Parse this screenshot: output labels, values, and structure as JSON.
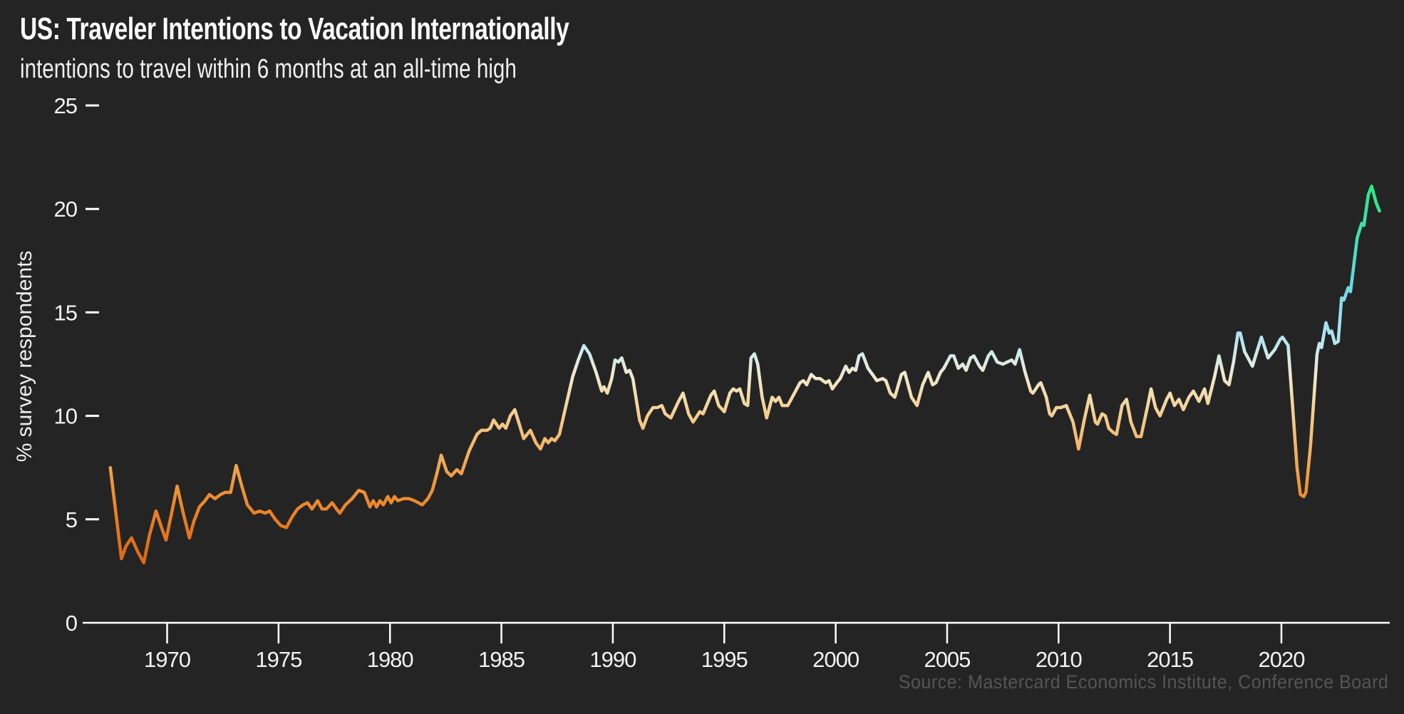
{
  "page": {
    "background": "#242424"
  },
  "header": {
    "title": "US: Traveler Intentions to Vacation Internationally",
    "subtitle": "intentions to travel within 6 months at an all-time high"
  },
  "footer": {
    "source": "Source: Mastercard Economics Institute, Conference Board"
  },
  "chart_data": {
    "type": "line",
    "title": "US: Traveler Intentions to Vacation Internationally",
    "subtitle": "intentions to travel within 6 months at an all-time high",
    "xlabel": "",
    "ylabel": "% survey respondents",
    "x_ticks": [
      1970,
      1975,
      1980,
      1985,
      1990,
      1995,
      2000,
      2005,
      2010,
      2015,
      2020
    ],
    "y_ticks": [
      0,
      5,
      10,
      15,
      20,
      25
    ],
    "xlim": [
      1966.9,
      2025.3
    ],
    "ylim": [
      0,
      25
    ],
    "grid": false,
    "legend_position": "none",
    "axis_color": "#ffffff",
    "line_width": 4.5,
    "color_encoding": "line color encodes y-value: orange (low) to cream (~11) to light blue (~14) to green (~21)",
    "gradient_stops": [
      {
        "value": 0,
        "color": "#c85310"
      },
      {
        "value": 2.8,
        "color": "#dc6414"
      },
      {
        "value": 5,
        "color": "#e97d22"
      },
      {
        "value": 6.5,
        "color": "#ee9438"
      },
      {
        "value": 8,
        "color": "#f1ac5c"
      },
      {
        "value": 9.5,
        "color": "#f3c581"
      },
      {
        "value": 11,
        "color": "#f3dcab"
      },
      {
        "value": 12,
        "color": "#f0e8d2"
      },
      {
        "value": 13,
        "color": "#cfeaea"
      },
      {
        "value": 13.8,
        "color": "#b2e3f2"
      },
      {
        "value": 15,
        "color": "#93dff2"
      },
      {
        "value": 16.5,
        "color": "#66d8e0"
      },
      {
        "value": 18,
        "color": "#4cdcc2"
      },
      {
        "value": 19.5,
        "color": "#38e3a4"
      },
      {
        "value": 21,
        "color": "#2bea83"
      },
      {
        "value": 23,
        "color": "#24ef6e"
      },
      {
        "value": 25,
        "color": "#1df25a"
      }
    ],
    "series": [
      {
        "name": "US traveler intentions to vacation internationally (% of survey respondents)",
        "points": [
          [
            1967.45,
            7.5
          ],
          [
            1967.7,
            5.3
          ],
          [
            1967.95,
            3.1
          ],
          [
            1968.15,
            3.7
          ],
          [
            1968.4,
            4.1
          ],
          [
            1968.7,
            3.4
          ],
          [
            1968.95,
            2.9
          ],
          [
            1969.2,
            4.2
          ],
          [
            1969.5,
            5.4
          ],
          [
            1969.75,
            4.6
          ],
          [
            1969.95,
            4.0
          ],
          [
            1970.2,
            5.3
          ],
          [
            1970.45,
            6.6
          ],
          [
            1970.7,
            5.4
          ],
          [
            1971.0,
            4.1
          ],
          [
            1971.2,
            4.9
          ],
          [
            1971.45,
            5.6
          ],
          [
            1971.7,
            5.9
          ],
          [
            1971.9,
            6.2
          ],
          [
            1972.15,
            6.0
          ],
          [
            1972.4,
            6.2
          ],
          [
            1972.6,
            6.3
          ],
          [
            1972.85,
            6.3
          ],
          [
            1973.1,
            7.6
          ],
          [
            1973.35,
            6.6
          ],
          [
            1973.6,
            5.7
          ],
          [
            1973.9,
            5.3
          ],
          [
            1974.15,
            5.4
          ],
          [
            1974.4,
            5.3
          ],
          [
            1974.6,
            5.4
          ],
          [
            1974.85,
            5.0
          ],
          [
            1975.1,
            4.7
          ],
          [
            1975.35,
            4.6
          ],
          [
            1975.6,
            5.1
          ],
          [
            1975.85,
            5.5
          ],
          [
            1976.1,
            5.7
          ],
          [
            1976.3,
            5.8
          ],
          [
            1976.5,
            5.5
          ],
          [
            1976.75,
            5.9
          ],
          [
            1976.95,
            5.5
          ],
          [
            1977.15,
            5.5
          ],
          [
            1977.4,
            5.8
          ],
          [
            1977.6,
            5.5
          ],
          [
            1977.75,
            5.3
          ],
          [
            1978.0,
            5.7
          ],
          [
            1978.3,
            6.0
          ],
          [
            1978.6,
            6.4
          ],
          [
            1978.85,
            6.3
          ],
          [
            1979.1,
            5.6
          ],
          [
            1979.25,
            5.9
          ],
          [
            1979.4,
            5.6
          ],
          [
            1979.55,
            5.9
          ],
          [
            1979.7,
            5.7
          ],
          [
            1979.9,
            6.1
          ],
          [
            1980.05,
            5.8
          ],
          [
            1980.2,
            6.1
          ],
          [
            1980.35,
            5.9
          ],
          [
            1980.6,
            6.0
          ],
          [
            1980.85,
            6.0
          ],
          [
            1981.1,
            5.9
          ],
          [
            1981.45,
            5.7
          ],
          [
            1981.7,
            6.0
          ],
          [
            1981.9,
            6.4
          ],
          [
            1982.1,
            7.2
          ],
          [
            1982.3,
            8.1
          ],
          [
            1982.55,
            7.3
          ],
          [
            1982.75,
            7.1
          ],
          [
            1983.0,
            7.4
          ],
          [
            1983.2,
            7.2
          ],
          [
            1983.55,
            8.3
          ],
          [
            1983.9,
            9.1
          ],
          [
            1984.1,
            9.3
          ],
          [
            1984.35,
            9.3
          ],
          [
            1984.5,
            9.4
          ],
          [
            1984.65,
            9.8
          ],
          [
            1984.9,
            9.4
          ],
          [
            1985.05,
            9.6
          ],
          [
            1985.2,
            9.4
          ],
          [
            1985.4,
            10.0
          ],
          [
            1985.6,
            10.3
          ],
          [
            1985.8,
            9.6
          ],
          [
            1986.0,
            8.9
          ],
          [
            1986.3,
            9.3
          ],
          [
            1986.55,
            8.7
          ],
          [
            1986.75,
            8.4
          ],
          [
            1986.95,
            8.9
          ],
          [
            1987.1,
            8.7
          ],
          [
            1987.25,
            8.9
          ],
          [
            1987.4,
            8.8
          ],
          [
            1987.6,
            9.1
          ],
          [
            1987.9,
            10.5
          ],
          [
            1988.2,
            11.9
          ],
          [
            1988.45,
            12.7
          ],
          [
            1988.7,
            13.4
          ],
          [
            1988.95,
            13.0
          ],
          [
            1989.25,
            12.1
          ],
          [
            1989.5,
            11.2
          ],
          [
            1989.6,
            11.4
          ],
          [
            1989.75,
            11.1
          ],
          [
            1989.95,
            11.8
          ],
          [
            1990.1,
            12.7
          ],
          [
            1990.25,
            12.6
          ],
          [
            1990.4,
            12.8
          ],
          [
            1990.6,
            12.1
          ],
          [
            1990.75,
            12.2
          ],
          [
            1990.9,
            11.8
          ],
          [
            1991.05,
            10.8
          ],
          [
            1991.2,
            9.8
          ],
          [
            1991.35,
            9.4
          ],
          [
            1991.55,
            10.0
          ],
          [
            1991.8,
            10.4
          ],
          [
            1992.0,
            10.4
          ],
          [
            1992.2,
            10.5
          ],
          [
            1992.35,
            10.1
          ],
          [
            1992.6,
            9.9
          ],
          [
            1992.95,
            10.7
          ],
          [
            1993.15,
            11.1
          ],
          [
            1993.4,
            10.1
          ],
          [
            1993.6,
            9.7
          ],
          [
            1993.9,
            10.2
          ],
          [
            1994.05,
            10.1
          ],
          [
            1994.4,
            11.0
          ],
          [
            1994.55,
            11.2
          ],
          [
            1994.75,
            10.5
          ],
          [
            1995.0,
            10.2
          ],
          [
            1995.25,
            11.1
          ],
          [
            1995.4,
            11.3
          ],
          [
            1995.55,
            11.2
          ],
          [
            1995.7,
            11.3
          ],
          [
            1995.9,
            10.6
          ],
          [
            1996.05,
            10.5
          ],
          [
            1996.2,
            12.8
          ],
          [
            1996.35,
            13.0
          ],
          [
            1996.5,
            12.5
          ],
          [
            1996.7,
            10.9
          ],
          [
            1996.9,
            9.9
          ],
          [
            1997.15,
            10.9
          ],
          [
            1997.3,
            10.7
          ],
          [
            1997.45,
            10.9
          ],
          [
            1997.6,
            10.5
          ],
          [
            1997.85,
            10.5
          ],
          [
            1998.2,
            11.2
          ],
          [
            1998.4,
            11.6
          ],
          [
            1998.55,
            11.7
          ],
          [
            1998.7,
            11.5
          ],
          [
            1998.9,
            12.0
          ],
          [
            1999.1,
            11.8
          ],
          [
            1999.3,
            11.8
          ],
          [
            1999.55,
            11.6
          ],
          [
            1999.7,
            11.7
          ],
          [
            1999.85,
            11.3
          ],
          [
            2000.05,
            11.6
          ],
          [
            2000.2,
            11.8
          ],
          [
            2000.45,
            12.4
          ],
          [
            2000.6,
            12.1
          ],
          [
            2000.75,
            12.3
          ],
          [
            2000.9,
            12.2
          ],
          [
            2001.05,
            12.9
          ],
          [
            2001.2,
            13.0
          ],
          [
            2001.45,
            12.3
          ],
          [
            2001.65,
            12.0
          ],
          [
            2001.85,
            11.7
          ],
          [
            2002.1,
            11.8
          ],
          [
            2002.25,
            11.7
          ],
          [
            2002.45,
            11.1
          ],
          [
            2002.65,
            10.9
          ],
          [
            2002.95,
            12.0
          ],
          [
            2003.1,
            12.1
          ],
          [
            2003.4,
            10.9
          ],
          [
            2003.65,
            10.5
          ],
          [
            2003.9,
            11.5
          ],
          [
            2004.15,
            12.1
          ],
          [
            2004.35,
            11.5
          ],
          [
            2004.5,
            11.6
          ],
          [
            2004.7,
            12.1
          ],
          [
            2004.85,
            12.3
          ],
          [
            2005.15,
            12.9
          ],
          [
            2005.3,
            12.9
          ],
          [
            2005.5,
            12.3
          ],
          [
            2005.7,
            12.5
          ],
          [
            2005.85,
            12.2
          ],
          [
            2006.05,
            12.8
          ],
          [
            2006.2,
            12.9
          ],
          [
            2006.45,
            12.4
          ],
          [
            2006.6,
            12.2
          ],
          [
            2006.85,
            12.9
          ],
          [
            2007.0,
            13.1
          ],
          [
            2007.25,
            12.6
          ],
          [
            2007.5,
            12.5
          ],
          [
            2007.7,
            12.6
          ],
          [
            2007.9,
            12.7
          ],
          [
            2008.05,
            12.5
          ],
          [
            2008.25,
            13.2
          ],
          [
            2008.5,
            12.1
          ],
          [
            2008.75,
            11.2
          ],
          [
            2008.85,
            11.1
          ],
          [
            2009.1,
            11.5
          ],
          [
            2009.2,
            11.6
          ],
          [
            2009.45,
            10.9
          ],
          [
            2009.6,
            10.1
          ],
          [
            2009.7,
            10.0
          ],
          [
            2009.9,
            10.4
          ],
          [
            2010.1,
            10.4
          ],
          [
            2010.35,
            10.5
          ],
          [
            2010.65,
            9.7
          ],
          [
            2010.9,
            8.4
          ],
          [
            2011.15,
            9.8
          ],
          [
            2011.4,
            11.0
          ],
          [
            2011.65,
            9.7
          ],
          [
            2011.75,
            9.6
          ],
          [
            2011.95,
            10.1
          ],
          [
            2012.1,
            10.0
          ],
          [
            2012.25,
            9.4
          ],
          [
            2012.45,
            9.2
          ],
          [
            2012.6,
            9.1
          ],
          [
            2012.85,
            10.5
          ],
          [
            2013.05,
            10.8
          ],
          [
            2013.25,
            9.7
          ],
          [
            2013.5,
            9.0
          ],
          [
            2013.7,
            9.0
          ],
          [
            2014.0,
            10.5
          ],
          [
            2014.15,
            11.3
          ],
          [
            2014.35,
            10.4
          ],
          [
            2014.55,
            10.0
          ],
          [
            2014.85,
            10.8
          ],
          [
            2015.0,
            11.1
          ],
          [
            2015.2,
            10.5
          ],
          [
            2015.4,
            10.8
          ],
          [
            2015.6,
            10.3
          ],
          [
            2015.85,
            10.9
          ],
          [
            2016.05,
            11.2
          ],
          [
            2016.3,
            10.7
          ],
          [
            2016.55,
            11.3
          ],
          [
            2016.7,
            10.6
          ],
          [
            2017.0,
            11.9
          ],
          [
            2017.2,
            12.9
          ],
          [
            2017.45,
            11.7
          ],
          [
            2017.65,
            11.5
          ],
          [
            2017.85,
            12.6
          ],
          [
            2018.05,
            14.0
          ],
          [
            2018.15,
            14.0
          ],
          [
            2018.35,
            13.1
          ],
          [
            2018.7,
            12.4
          ],
          [
            2019.1,
            13.8
          ],
          [
            2019.4,
            12.8
          ],
          [
            2019.7,
            13.2
          ],
          [
            2019.95,
            13.7
          ],
          [
            2020.05,
            13.8
          ],
          [
            2020.3,
            13.4
          ],
          [
            2020.5,
            10.5
          ],
          [
            2020.7,
            7.5
          ],
          [
            2020.85,
            6.2
          ],
          [
            2021.0,
            6.1
          ],
          [
            2021.1,
            6.3
          ],
          [
            2021.3,
            8.5
          ],
          [
            2021.5,
            11.5
          ],
          [
            2021.6,
            13.0
          ],
          [
            2021.7,
            13.5
          ],
          [
            2021.8,
            13.3
          ],
          [
            2022.0,
            14.5
          ],
          [
            2022.15,
            14.0
          ],
          [
            2022.25,
            14.1
          ],
          [
            2022.4,
            13.5
          ],
          [
            2022.55,
            13.6
          ],
          [
            2022.7,
            15.7
          ],
          [
            2022.8,
            15.6
          ],
          [
            2023.0,
            16.2
          ],
          [
            2023.1,
            16.0
          ],
          [
            2023.4,
            18.6
          ],
          [
            2023.6,
            19.3
          ],
          [
            2023.7,
            19.2
          ],
          [
            2023.9,
            20.7
          ],
          [
            2024.05,
            21.1
          ],
          [
            2024.25,
            20.3
          ],
          [
            2024.4,
            19.9
          ]
        ]
      }
    ]
  }
}
